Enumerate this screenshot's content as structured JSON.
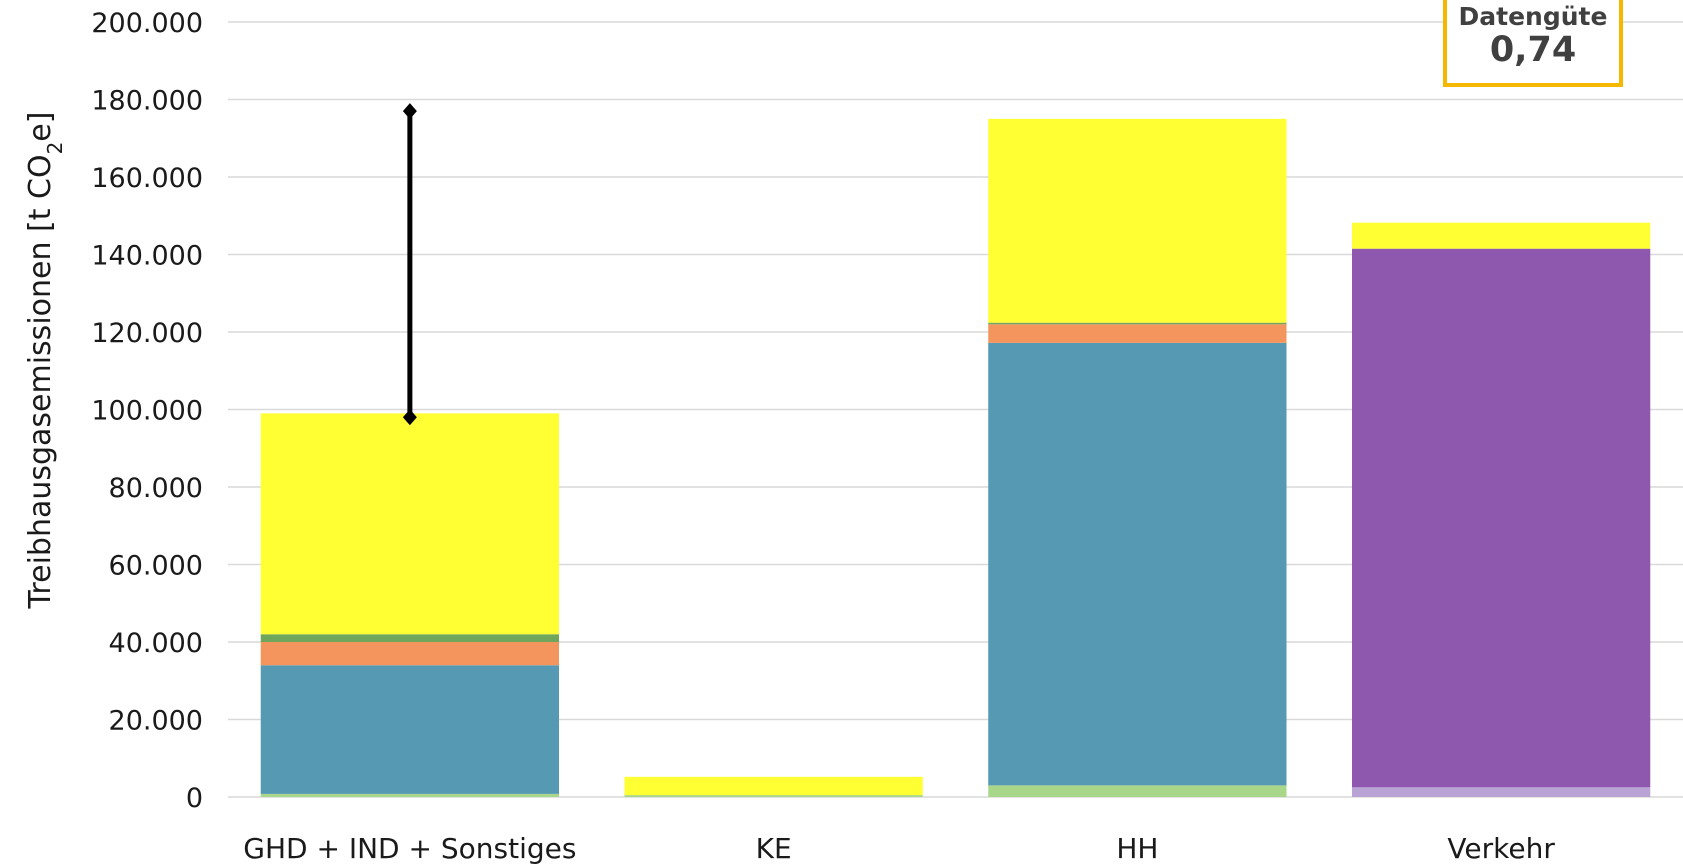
{
  "chart_data": {
    "type": "bar",
    "stacked": true,
    "ylabel_prefix": "Treibhausgasemissionen [t CO",
    "ylabel_sub": "2",
    "ylabel_suffix": "e]",
    "ylim": [
      0,
      200000
    ],
    "yticks": [
      "0",
      "20.000",
      "40.000",
      "60.000",
      "80.000",
      "100.000",
      "120.000",
      "140.000",
      "160.000",
      "180.000",
      "200.000"
    ],
    "grid": true,
    "categories": [
      "GHD + IND + Sonstiges",
      "KE",
      "HH",
      "Verkehr"
    ],
    "series": [
      {
        "color": "#a9d78a",
        "values": [
          800,
          500,
          3000,
          0
        ]
      },
      {
        "color": "#b9a3d4",
        "values": [
          0,
          0,
          0,
          2500
        ]
      },
      {
        "color": "#5699b3",
        "values": [
          33200,
          0,
          114200,
          0
        ]
      },
      {
        "color": "#8e58af",
        "values": [
          0,
          0,
          0,
          139000
        ]
      },
      {
        "color": "#f3955c",
        "values": [
          6000,
          0,
          4800,
          0
        ]
      },
      {
        "color": "#6fa65b",
        "values": [
          2000,
          0,
          400,
          0
        ]
      },
      {
        "color": "#ffff33",
        "values": [
          57000,
          4700,
          52600,
          6700
        ]
      }
    ],
    "error_bar": {
      "category": "GHD + IND + Sonstiges",
      "low": 98000,
      "high": 177000
    }
  },
  "badge": {
    "title": "Datengüte",
    "value": "0,74"
  }
}
